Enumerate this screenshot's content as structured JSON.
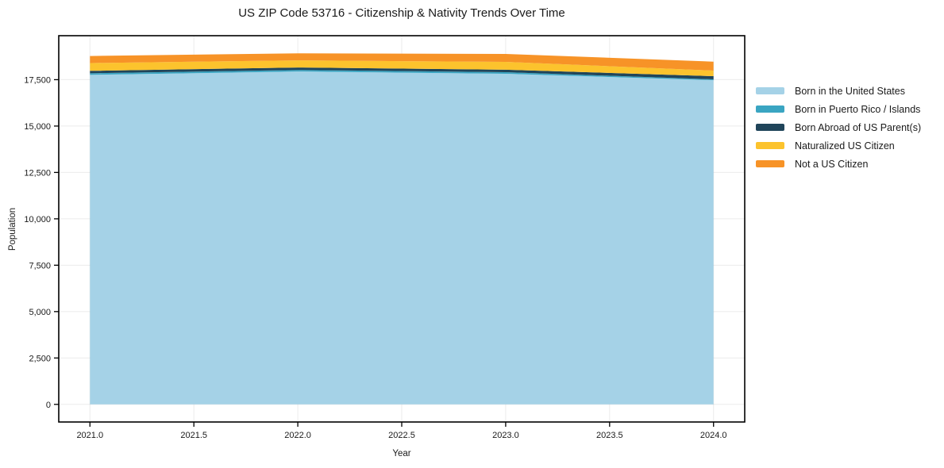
{
  "title": "US ZIP Code 53716 - Citizenship & Nativity Trends Over Time",
  "chart_data": {
    "type": "area",
    "stacked": true,
    "title": "US ZIP Code 53716 - Citizenship & Nativity Trends Over Time",
    "xlabel": "Year",
    "ylabel": "Population",
    "x": [
      2021,
      2022,
      2023,
      2024
    ],
    "series": [
      {
        "name": "Born in the United States",
        "color": "#a5d2e7",
        "values": [
          17760,
          17940,
          17820,
          17470
        ]
      },
      {
        "name": "Born in Puerto Rico / Islands",
        "color": "#3aa5c2",
        "values": [
          85,
          85,
          85,
          50
        ]
      },
      {
        "name": "Born Abroad of US Parent(s)",
        "color": "#20455a",
        "values": [
          130,
          130,
          130,
          170
        ]
      },
      {
        "name": "Naturalized US Citizen",
        "color": "#fcc32d",
        "values": [
          420,
          385,
          425,
          300
        ]
      },
      {
        "name": "Not a US Citizen",
        "color": "#f79327",
        "values": [
          380,
          380,
          425,
          480
        ]
      }
    ],
    "xlim": [
      2020.85,
      2024.15
    ],
    "ylim": [
      -950,
      19870
    ],
    "x_ticks": [
      {
        "v": 2021.0,
        "label": "2021.0"
      },
      {
        "v": 2021.5,
        "label": "2021.5"
      },
      {
        "v": 2022.0,
        "label": "2022.0"
      },
      {
        "v": 2022.5,
        "label": "2022.5"
      },
      {
        "v": 2023.0,
        "label": "2023.0"
      },
      {
        "v": 2023.5,
        "label": "2023.5"
      },
      {
        "v": 2024.0,
        "label": "2024.0"
      }
    ],
    "y_ticks": [
      {
        "v": 0,
        "label": "0"
      },
      {
        "v": 2500,
        "label": "2,500"
      },
      {
        "v": 5000,
        "label": "5,000"
      },
      {
        "v": 7500,
        "label": "7,500"
      },
      {
        "v": 10000,
        "label": "10,000"
      },
      {
        "v": 12500,
        "label": "12,500"
      },
      {
        "v": 15000,
        "label": "15,000"
      },
      {
        "v": 17500,
        "label": "17,500"
      }
    ],
    "grid": true,
    "legend_position": "outside-right"
  }
}
